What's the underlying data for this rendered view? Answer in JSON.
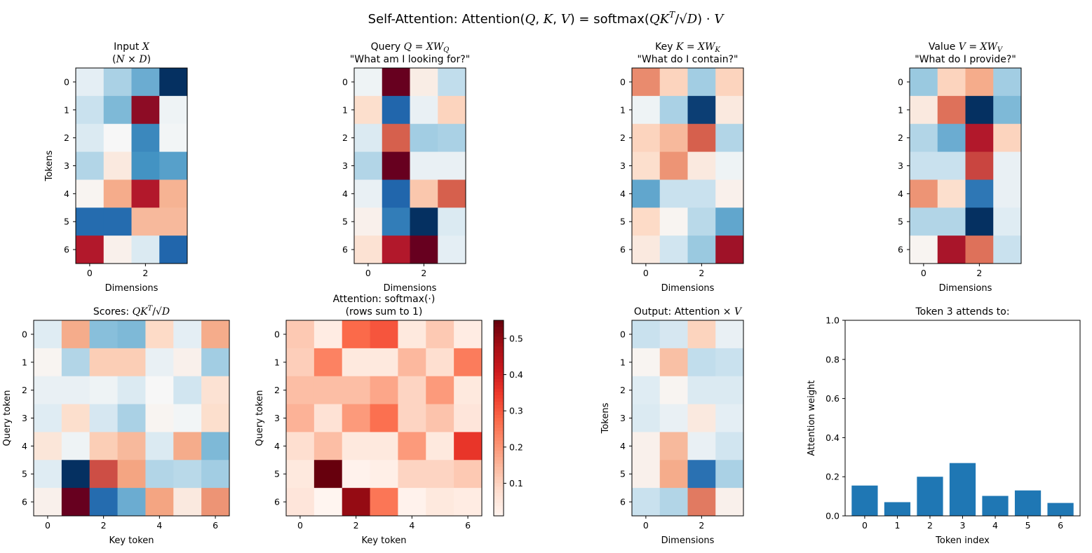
{
  "figure": {
    "suptitle_parts": [
      "Self-Attention: Attention(",
      "Q",
      ", ",
      "K",
      ", ",
      "V",
      ") = softmax(",
      "QK",
      "T",
      "/√",
      "D",
      ") · ",
      "V"
    ]
  },
  "chart_data": [
    {
      "type": "heatmap",
      "title_lines": [
        [
          "Input ",
          "X"
        ],
        [
          "(",
          "N",
          " × ",
          "D",
          ")"
        ]
      ],
      "xlabel": "Dimensions",
      "ylabel": "Tokens",
      "xticks": [
        0,
        2
      ],
      "yticks": [
        0,
        1,
        2,
        3,
        4,
        5,
        6
      ],
      "cmap": "RdBu_r",
      "vrange": [
        -2,
        2
      ],
      "matrix": [
        [
          -0.2,
          -0.65,
          -1.0,
          -2.0
        ],
        [
          -0.45,
          -0.9,
          1.8,
          -0.1
        ],
        [
          -0.3,
          0.0,
          -1.3,
          -0.05
        ],
        [
          -0.6,
          0.2,
          -1.2,
          -1.1
        ],
        [
          0.05,
          0.75,
          1.6,
          0.7
        ],
        [
          -1.55,
          -1.55,
          0.65,
          0.65
        ],
        [
          1.6,
          0.1,
          -0.3,
          -1.6
        ]
      ]
    },
    {
      "type": "heatmap",
      "title_lines": [
        [
          "Query ",
          "Q",
          " = ",
          "XW",
          "Q"
        ],
        [
          "\"What am I looking for?\""
        ]
      ],
      "xlabel": "Dimensions",
      "ylabel": "",
      "xticks": [
        0,
        2
      ],
      "yticks": [
        0,
        1,
        2,
        3,
        4,
        5,
        6
      ],
      "cmap": "RdBu_r",
      "vrange": [
        -2,
        2
      ],
      "matrix": [
        [
          -0.1,
          2.0,
          0.15,
          -0.5
        ],
        [
          0.35,
          -1.6,
          -0.15,
          0.45
        ],
        [
          -0.3,
          1.2,
          -0.7,
          -0.65
        ],
        [
          -0.6,
          2.0,
          -0.15,
          -0.15
        ],
        [
          -0.15,
          -1.6,
          0.55,
          1.2
        ],
        [
          0.1,
          -1.4,
          -2.0,
          -0.3
        ],
        [
          0.3,
          1.6,
          2.0,
          -0.2
        ]
      ]
    },
    {
      "type": "heatmap",
      "title_lines": [
        [
          "Key ",
          "K",
          " = ",
          "XW",
          "K"
        ],
        [
          "\"What do I contain?\""
        ]
      ],
      "xlabel": "Dimensions",
      "ylabel": "",
      "xticks": [
        0,
        2
      ],
      "yticks": [
        0,
        1,
        2,
        3,
        4,
        5,
        6
      ],
      "cmap": "RdBu_r",
      "vrange": [
        -2,
        2
      ],
      "matrix": [
        [
          0.95,
          0.45,
          -0.7,
          0.45
        ],
        [
          -0.1,
          -0.65,
          -1.9,
          0.2
        ],
        [
          0.45,
          0.65,
          1.2,
          -0.6
        ],
        [
          0.35,
          0.9,
          0.2,
          -0.1
        ],
        [
          -1.05,
          -0.45,
          -0.45,
          0.1
        ],
        [
          0.4,
          0.05,
          -0.55,
          -1.05
        ],
        [
          0.2,
          -0.4,
          -0.75,
          1.7
        ]
      ]
    },
    {
      "type": "heatmap",
      "title_lines": [
        [
          "Value ",
          "V",
          " = ",
          "XW",
          "V"
        ],
        [
          "\"What do I provide?\""
        ]
      ],
      "xlabel": "Dimensions",
      "ylabel": "",
      "xticks": [
        0,
        2
      ],
      "yticks": [
        0,
        1,
        2,
        3,
        4,
        5,
        6
      ],
      "cmap": "RdBu_r",
      "vrange": [
        -2,
        2
      ],
      "matrix": [
        [
          -0.75,
          0.45,
          0.75,
          -0.7
        ],
        [
          0.2,
          1.1,
          -2.0,
          -0.9
        ],
        [
          -0.6,
          -1.0,
          1.6,
          0.45
        ],
        [
          -0.45,
          -0.45,
          1.35,
          -0.15
        ],
        [
          0.9,
          0.35,
          -1.45,
          -0.15
        ],
        [
          -0.6,
          -0.6,
          -2.0,
          -0.25
        ],
        [
          0.05,
          1.65,
          1.1,
          -0.45
        ]
      ]
    },
    {
      "type": "heatmap",
      "title_lines": [
        [
          "Scores: ",
          "QK",
          "T",
          "/√",
          "D"
        ]
      ],
      "xlabel": "Key token",
      "ylabel": "Query token",
      "xticks": [
        0,
        2,
        4,
        6
      ],
      "yticks": [
        0,
        1,
        2,
        3,
        4,
        5,
        6
      ],
      "cmap": "RdBu_r",
      "vrange": [
        -2,
        2
      ],
      "matrix": [
        [
          -0.25,
          0.75,
          -0.85,
          -0.9,
          0.4,
          -0.2,
          0.75
        ],
        [
          0.05,
          -0.6,
          0.5,
          0.5,
          -0.15,
          0.1,
          -0.7
        ],
        [
          -0.15,
          -0.15,
          -0.1,
          -0.3,
          0.0,
          -0.4,
          0.3
        ],
        [
          -0.25,
          0.35,
          -0.35,
          -0.65,
          0.05,
          -0.05,
          0.35
        ],
        [
          0.25,
          -0.1,
          0.5,
          0.65,
          -0.3,
          0.75,
          -0.9
        ],
        [
          -0.25,
          -2.0,
          1.3,
          0.8,
          -0.6,
          -0.55,
          -0.7
        ],
        [
          0.1,
          2.0,
          -1.55,
          -1.0,
          0.8,
          0.2,
          0.9
        ]
      ]
    },
    {
      "type": "heatmap",
      "title_lines": [
        [
          "Attention: softmax(·)"
        ],
        [
          "(rows sum to 1)"
        ]
      ],
      "xlabel": "Key token",
      "ylabel": "Query token",
      "xticks": [
        0,
        2,
        4,
        6
      ],
      "yticks": [
        0,
        1,
        2,
        3,
        4,
        5,
        6
      ],
      "cmap": "Reds",
      "vrange": [
        0.01,
        0.55
      ],
      "colorbar_ticks": [
        0.1,
        0.2,
        0.3,
        0.4,
        0.5
      ],
      "matrix": [
        [
          0.12,
          0.04,
          0.28,
          0.31,
          0.05,
          0.12,
          0.04
        ],
        [
          0.11,
          0.24,
          0.05,
          0.05,
          0.15,
          0.08,
          0.25
        ],
        [
          0.14,
          0.14,
          0.14,
          0.18,
          0.1,
          0.2,
          0.05
        ],
        [
          0.16,
          0.07,
          0.2,
          0.27,
          0.1,
          0.13,
          0.06
        ],
        [
          0.08,
          0.14,
          0.05,
          0.05,
          0.2,
          0.05,
          0.36
        ],
        [
          0.05,
          0.55,
          0.02,
          0.03,
          0.1,
          0.1,
          0.12
        ],
        [
          0.06,
          0.01,
          0.5,
          0.26,
          0.02,
          0.05,
          0.04
        ]
      ]
    },
    {
      "type": "heatmap",
      "title_lines": [
        [
          "Output: Attention × ",
          "V"
        ]
      ],
      "xlabel": "Dimensions",
      "ylabel": "Tokens",
      "xticks": [
        0,
        2
      ],
      "yticks": [
        0,
        1,
        2,
        3,
        4,
        5,
        6
      ],
      "cmap": "RdBu_r",
      "vrange": [
        -2,
        2
      ],
      "matrix": [
        [
          -0.45,
          -0.35,
          0.45,
          -0.15
        ],
        [
          0.05,
          0.6,
          -0.5,
          -0.45
        ],
        [
          -0.25,
          0.05,
          -0.3,
          -0.3
        ],
        [
          -0.3,
          -0.15,
          0.2,
          -0.2
        ],
        [
          0.1,
          0.65,
          -0.15,
          -0.4
        ],
        [
          0.1,
          0.75,
          -1.5,
          -0.65
        ],
        [
          -0.45,
          -0.6,
          1.05,
          0.1
        ]
      ]
    },
    {
      "type": "bar",
      "title": "Token 3 attends to:",
      "xlabel": "Token index",
      "ylabel": "Attention weight",
      "categories": [
        "0",
        "1",
        "2",
        "3",
        "4",
        "5",
        "6"
      ],
      "values": [
        0.155,
        0.07,
        0.2,
        0.27,
        0.102,
        0.13,
        0.066
      ],
      "ylim": [
        0,
        1
      ],
      "yticks": [
        "0.0",
        "0.2",
        "0.4",
        "0.6",
        "0.8",
        "1.0"
      ],
      "color": "#1f77b4"
    }
  ]
}
